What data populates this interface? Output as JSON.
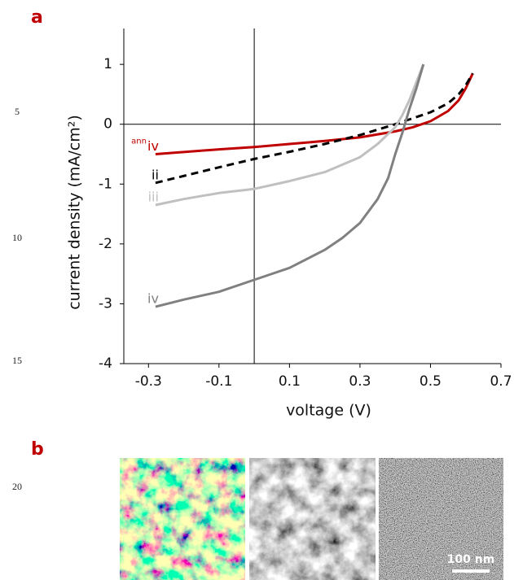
{
  "line_numbers": [
    "5",
    "10",
    "15",
    "20"
  ],
  "panels": [
    "a",
    "b"
  ],
  "scale_bar": "100 nm",
  "chart_data": {
    "type": "line",
    "x_label": "voltage (V)",
    "y_label": "current density (mA/cm²)",
    "xlim": [
      -0.37,
      0.7
    ],
    "xticks": [
      -0.3,
      -0.1,
      0.1,
      0.3,
      0.5,
      0.7
    ],
    "ylim": [
      -4,
      1.6
    ],
    "yticks": [
      1,
      0,
      -1,
      -2,
      -3,
      -4
    ],
    "series": [
      {
        "name": "iv",
        "label_sup": "ann",
        "color": "#c00000",
        "dash": false,
        "x": [
          -0.28,
          -0.1,
          0,
          0.1,
          0.2,
          0.3,
          0.4,
          0.45,
          0.5,
          0.55,
          0.58,
          0.6,
          0.62
        ],
        "values": [
          -0.5,
          -0.42,
          -0.38,
          -0.33,
          -0.28,
          -0.22,
          -0.12,
          -0.05,
          0.05,
          0.22,
          0.4,
          0.6,
          0.85
        ]
      },
      {
        "name": "ii",
        "color": "#000000",
        "dash": true,
        "x": [
          -0.28,
          -0.1,
          0,
          0.1,
          0.2,
          0.3,
          0.4,
          0.5,
          0.55,
          0.58,
          0.6,
          0.62
        ],
        "values": [
          -0.98,
          -0.72,
          -0.58,
          -0.46,
          -0.33,
          -0.18,
          0,
          0.2,
          0.35,
          0.5,
          0.65,
          0.85
        ]
      },
      {
        "name": "iii",
        "color": "#c0c0c0",
        "dash": false,
        "x": [
          -0.28,
          -0.2,
          -0.1,
          0,
          0.1,
          0.2,
          0.3,
          0.35,
          0.4,
          0.42,
          0.44,
          0.46,
          0.48
        ],
        "values": [
          -1.35,
          -1.25,
          -1.15,
          -1.08,
          -0.95,
          -0.8,
          -0.55,
          -0.33,
          -0.05,
          0.15,
          0.4,
          0.7,
          1.0
        ]
      },
      {
        "name": "iv",
        "color": "#808080",
        "dash": false,
        "x": [
          -0.28,
          -0.2,
          -0.1,
          0,
          0.1,
          0.2,
          0.25,
          0.3,
          0.35,
          0.38,
          0.4,
          0.42,
          0.44,
          0.46,
          0.48
        ],
        "values": [
          -3.05,
          -2.93,
          -2.8,
          -2.6,
          -2.4,
          -2.1,
          -1.9,
          -1.65,
          -1.25,
          -0.9,
          -0.5,
          -0.15,
          0.25,
          0.6,
          1.0
        ]
      }
    ]
  }
}
